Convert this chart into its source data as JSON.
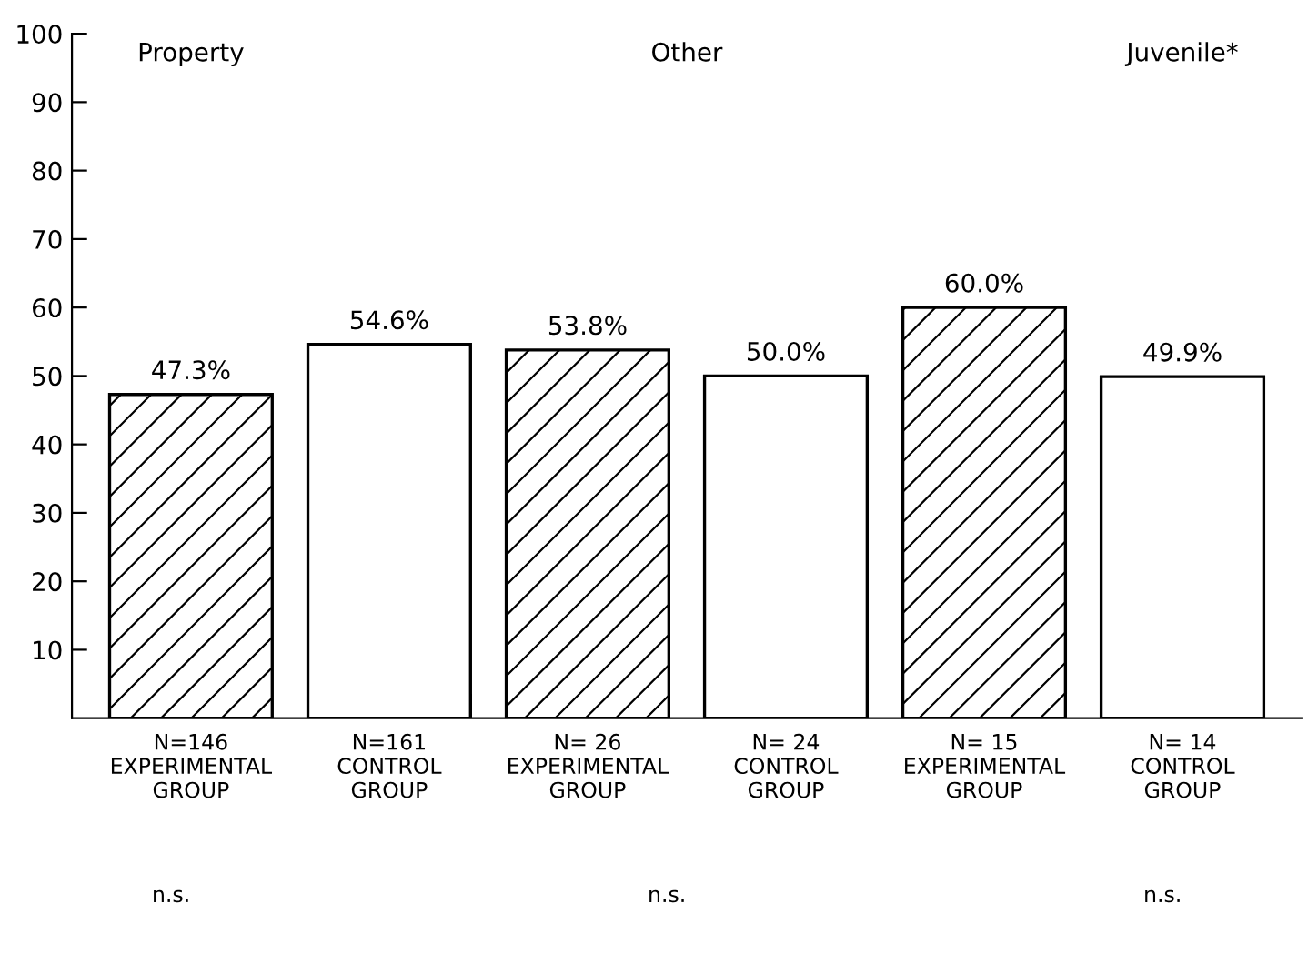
{
  "chart_data": {
    "type": "bar",
    "categories": [
      "N=146\nEXPERIMENTAL\nGROUP",
      "N=161\nCONTROL\nGROUP",
      "N= 26\nEXPERIMENTAL\nGROUP",
      "N= 24\nCONTROL\nGROUP",
      "N= 15\nEXPERIMENTAL\nGROUP",
      "N= 14\nCONTROL\nGROUP"
    ],
    "values": [
      47.3,
      54.6,
      53.8,
      50.0,
      60.0,
      49.9
    ],
    "value_labels": [
      "47.3%",
      "54.6%",
      "53.8%",
      "50.0%",
      "60.0%",
      "49.9%"
    ],
    "colors": [
      "#ffffff",
      "#ffffff",
      "#ffffff",
      "#ffffff",
      "#ffffff",
      "#ffffff"
    ],
    "ylim": [
      0,
      100
    ],
    "yticks": [
      10,
      20,
      30,
      40,
      50,
      60,
      70,
      80,
      90,
      100
    ],
    "annotations": [
      "Property",
      "Other",
      "Juvenile*",
      "n.s.",
      "n.s.",
      "n.s."
    ],
    "grid": false,
    "legend": false
  }
}
